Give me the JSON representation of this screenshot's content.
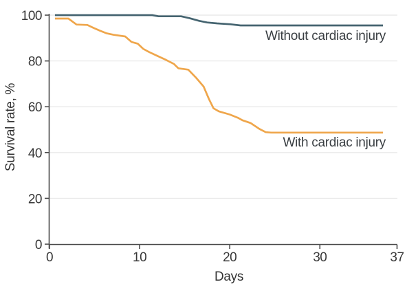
{
  "figure": {
    "ylabel": "Survival rate, %",
    "xlabel": "Days",
    "label_without": "Without cardiac injury",
    "label_with": "With cardiac injury"
  },
  "colors": {
    "orange_line": "#EFA64B",
    "slate_line": "#456470",
    "grid": "#EAEAEA",
    "axis": "#4A4A4A",
    "text": "#383838"
  },
  "chart_data": {
    "type": "line",
    "title": "",
    "xlabel": "Days",
    "ylabel": "Survival rate, %",
    "xlim": [
      0,
      38.6
    ],
    "ylim": [
      0,
      100
    ],
    "grid": "horizontal",
    "grid_y_values": [
      20,
      40,
      60,
      80,
      100
    ],
    "xticks": [
      {
        "label": "0",
        "value": 0
      },
      {
        "label": "10",
        "value": 10
      },
      {
        "label": "20",
        "value": 20
      },
      {
        "label": "30",
        "value": 30
      },
      {
        "label": "37",
        "value": 37,
        "at_axis_end": true
      }
    ],
    "yticks": [
      {
        "label": "0",
        "value": 0
      },
      {
        "label": "20",
        "value": 20
      },
      {
        "label": "40",
        "value": 40
      },
      {
        "label": "60",
        "value": 60
      },
      {
        "label": "80",
        "value": 80
      },
      {
        "label": "100",
        "value": 100
      }
    ],
    "legend_position": "inline annotations near line ends",
    "series": [
      {
        "name": "Without cardiac injury",
        "color_key": "slate_line",
        "points": [
          [
            0.6,
            100
          ],
          [
            11.4,
            100
          ],
          [
            12.1,
            99.5
          ],
          [
            14.6,
            99.5
          ],
          [
            15.5,
            98.7
          ],
          [
            16.6,
            97.5
          ],
          [
            17.5,
            96.8
          ],
          [
            18.6,
            96.4
          ],
          [
            20.1,
            96.0
          ],
          [
            21.2,
            95.5
          ],
          [
            37.0,
            95.5
          ]
        ]
      },
      {
        "name": "With cardiac injury",
        "color_key": "orange_line",
        "points": [
          [
            0.6,
            98.5
          ],
          [
            2.1,
            98.5
          ],
          [
            3.0,
            95.9
          ],
          [
            4.2,
            95.7
          ],
          [
            4.9,
            94.4
          ],
          [
            5.6,
            93.2
          ],
          [
            6.3,
            92.1
          ],
          [
            7.1,
            91.4
          ],
          [
            8.4,
            90.7
          ],
          [
            9.1,
            88.3
          ],
          [
            9.8,
            87.5
          ],
          [
            10.4,
            85.3
          ],
          [
            11.0,
            84.0
          ],
          [
            11.9,
            82.3
          ],
          [
            12.9,
            80.5
          ],
          [
            13.8,
            78.7
          ],
          [
            14.3,
            76.8
          ],
          [
            15.4,
            76.2
          ],
          [
            16.3,
            72.5
          ],
          [
            17.1,
            68.8
          ],
          [
            17.7,
            63.3
          ],
          [
            18.2,
            59.3
          ],
          [
            18.8,
            58.0
          ],
          [
            20.0,
            56.6
          ],
          [
            20.9,
            55.2
          ],
          [
            21.4,
            54.1
          ],
          [
            22.3,
            52.9
          ],
          [
            23.3,
            50.3
          ],
          [
            24.0,
            48.9
          ],
          [
            24.6,
            48.7
          ],
          [
            37.0,
            48.7
          ]
        ]
      }
    ]
  }
}
